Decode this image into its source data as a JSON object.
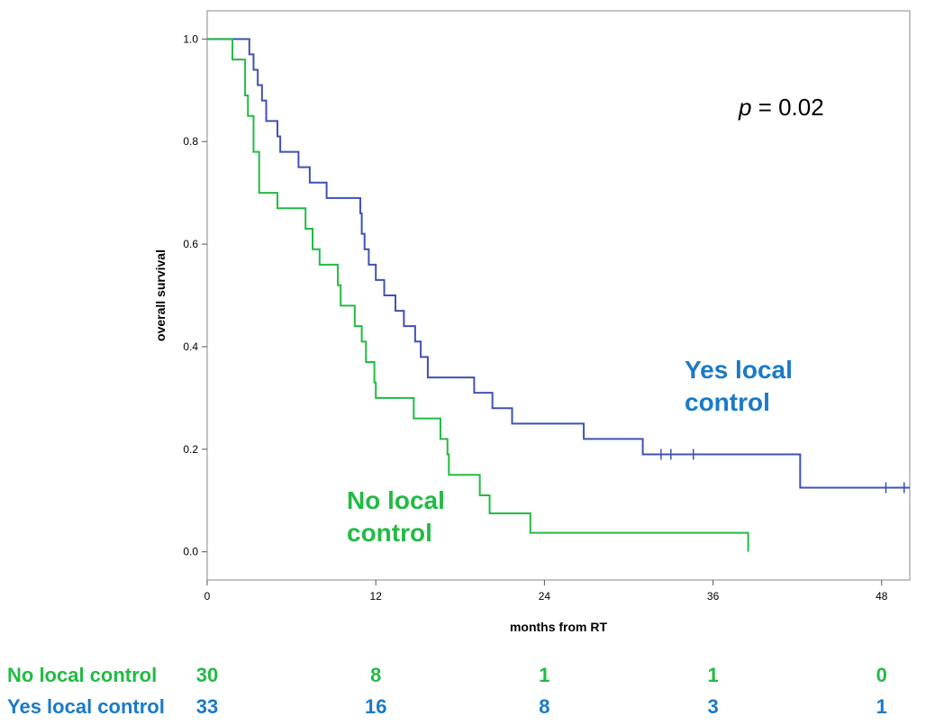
{
  "chart_data": {
    "type": "line",
    "xlabel": "months from RT",
    "ylabel": "overall survival",
    "xlim": [
      0,
      50
    ],
    "ylim": [
      -0.055,
      1.055
    ],
    "xticks": [
      0,
      12,
      24,
      36,
      48
    ],
    "yticks": [
      0.0,
      0.2,
      0.4,
      0.6,
      0.8,
      1.0
    ],
    "grid": false,
    "annotation": {
      "italic": "p",
      "rest": " = 0.02"
    },
    "series": [
      {
        "name_lines": [
          "Yes local",
          "control"
        ],
        "color": "#3f51b5",
        "label_color": "#1a7ac8",
        "steps": [
          [
            0,
            1.0
          ],
          [
            3.0,
            0.97
          ],
          [
            3.3,
            0.94
          ],
          [
            3.6,
            0.91
          ],
          [
            3.9,
            0.88
          ],
          [
            4.2,
            0.84
          ],
          [
            5.0,
            0.81
          ],
          [
            5.2,
            0.78
          ],
          [
            6.5,
            0.75
          ],
          [
            7.3,
            0.72
          ],
          [
            8.5,
            0.69
          ],
          [
            10.9,
            0.66
          ],
          [
            11.0,
            0.62
          ],
          [
            11.2,
            0.59
          ],
          [
            11.5,
            0.56
          ],
          [
            12.0,
            0.53
          ],
          [
            12.6,
            0.5
          ],
          [
            13.4,
            0.47
          ],
          [
            14.0,
            0.44
          ],
          [
            14.8,
            0.41
          ],
          [
            15.2,
            0.38
          ],
          [
            15.7,
            0.34
          ],
          [
            19.0,
            0.31
          ],
          [
            20.3,
            0.28
          ],
          [
            21.7,
            0.25
          ],
          [
            26.8,
            0.22
          ],
          [
            31.0,
            0.19
          ],
          [
            42.2,
            0.125
          ]
        ],
        "end_x": 50.0,
        "censors": [
          32.3,
          33.0,
          34.6,
          48.3,
          49.6
        ]
      },
      {
        "name_lines": [
          "No local",
          "control"
        ],
        "color": "#22bb44",
        "label_color": "#22bb44",
        "steps": [
          [
            0,
            1.0
          ],
          [
            1.8,
            0.96
          ],
          [
            2.7,
            0.89
          ],
          [
            2.9,
            0.85
          ],
          [
            3.3,
            0.78
          ],
          [
            3.7,
            0.7
          ],
          [
            5.0,
            0.67
          ],
          [
            7.0,
            0.63
          ],
          [
            7.5,
            0.59
          ],
          [
            8.0,
            0.56
          ],
          [
            9.3,
            0.52
          ],
          [
            9.5,
            0.48
          ],
          [
            10.5,
            0.44
          ],
          [
            11.0,
            0.41
          ],
          [
            11.3,
            0.37
          ],
          [
            11.9,
            0.33
          ],
          [
            12.0,
            0.3
          ],
          [
            14.7,
            0.26
          ],
          [
            16.6,
            0.22
          ],
          [
            17.1,
            0.19
          ],
          [
            17.2,
            0.15
          ],
          [
            19.4,
            0.11
          ],
          [
            20.1,
            0.075
          ],
          [
            23.0,
            0.037
          ],
          [
            38.5,
            0.0
          ]
        ],
        "end_x": 38.5,
        "censors": []
      }
    ],
    "risk_table": [
      {
        "label": "No local control",
        "color": "#22bb44",
        "counts": [
          "30",
          "8",
          "1",
          "1",
          "0"
        ]
      },
      {
        "label": "Yes local control",
        "color": "#1a7ac8",
        "counts": [
          "33",
          "16",
          "8",
          "3",
          "1"
        ]
      }
    ]
  }
}
